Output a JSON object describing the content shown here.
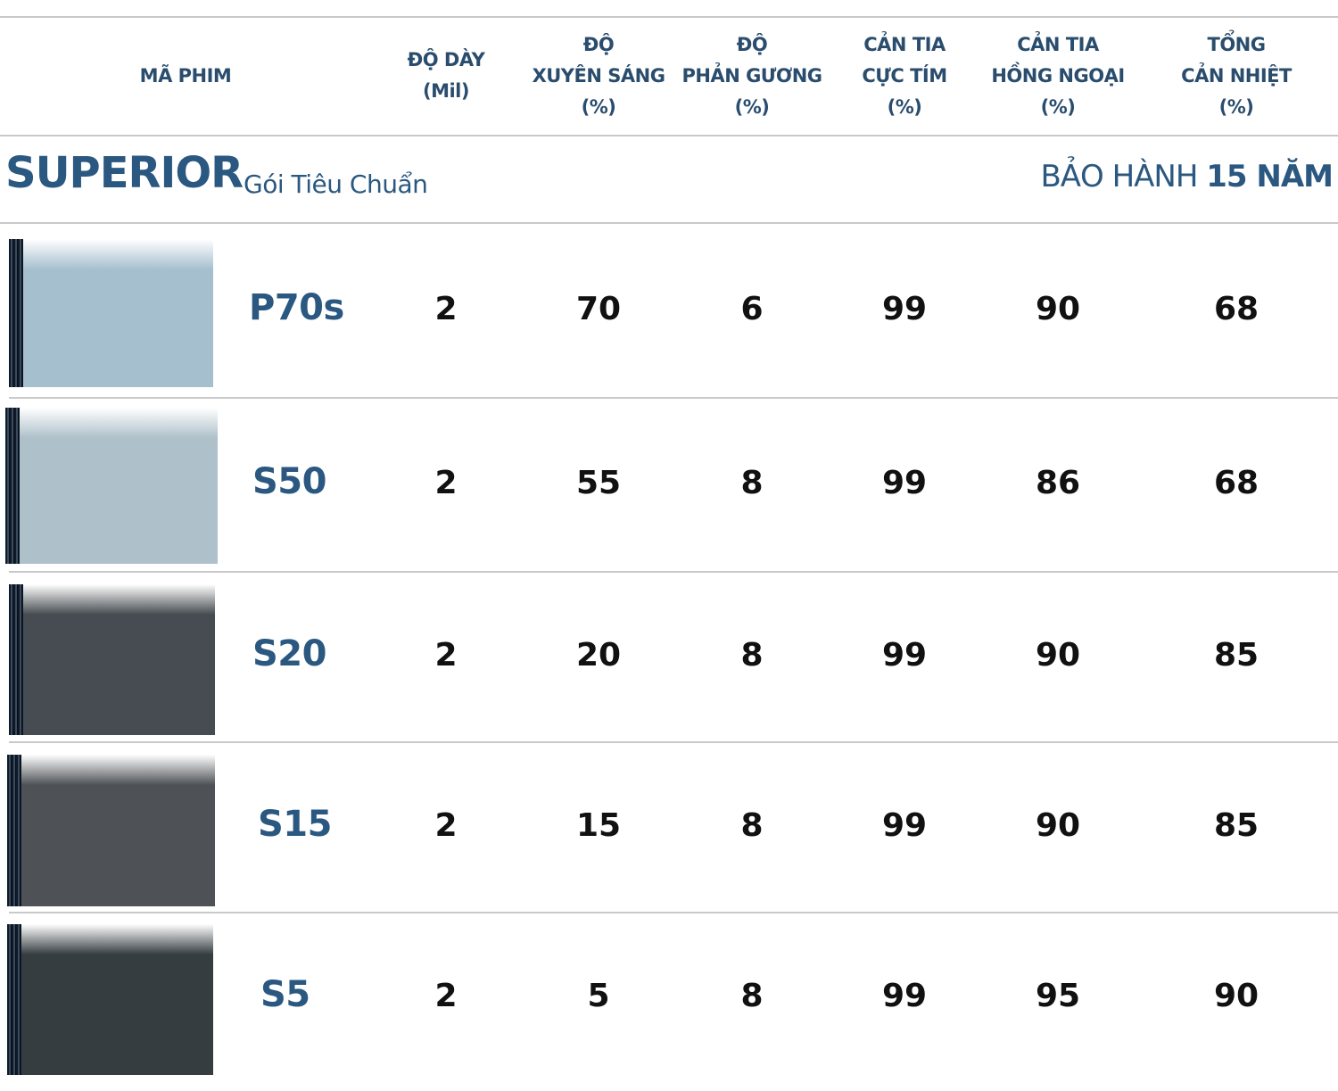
{
  "header": {
    "code": "MÃ PHIM",
    "thickness": [
      "ĐỘ DÀY",
      "(Mil)"
    ],
    "vlt": [
      "ĐỘ",
      "XUYÊN SÁNG",
      "(%)"
    ],
    "reflect": [
      "ĐỘ",
      "PHẢN GƯƠNG",
      "(%)"
    ],
    "uv": [
      "CẢN TIA",
      "CỰC TÍM",
      "(%)"
    ],
    "ir": [
      "CẢN TIA",
      "HỒNG NGOẠI",
      "(%)"
    ],
    "heat": [
      "TỔNG",
      "CẢN NHIỆT",
      "(%)"
    ]
  },
  "group": {
    "name": "SUPERIOR",
    "subtitle": "Gói Tiêu Chuẩn",
    "warranty_label": "BẢO HÀNH",
    "warranty_value": "15 NĂM"
  },
  "rows": [
    {
      "code": "P70s",
      "swatch_color": "#a6bfcf",
      "thickness": "2",
      "vlt": "70",
      "reflect": "6",
      "uv": "99",
      "ir": "90",
      "heat": "68"
    },
    {
      "code": "S50",
      "swatch_color": "#aec0ca",
      "thickness": "2",
      "vlt": "55",
      "reflect": "8",
      "uv": "99",
      "ir": "86",
      "heat": "68"
    },
    {
      "code": "S20",
      "swatch_color": "#464c51",
      "thickness": "2",
      "vlt": "20",
      "reflect": "8",
      "uv": "99",
      "ir": "90",
      "heat": "85"
    },
    {
      "code": "S15",
      "swatch_color": "#4e5257",
      "thickness": "2",
      "vlt": "15",
      "reflect": "8",
      "uv": "99",
      "ir": "90",
      "heat": "85"
    },
    {
      "code": "S5",
      "swatch_color": "#363d40",
      "thickness": "2",
      "vlt": "5",
      "reflect": "8",
      "uv": "99",
      "ir": "95",
      "heat": "90"
    }
  ]
}
